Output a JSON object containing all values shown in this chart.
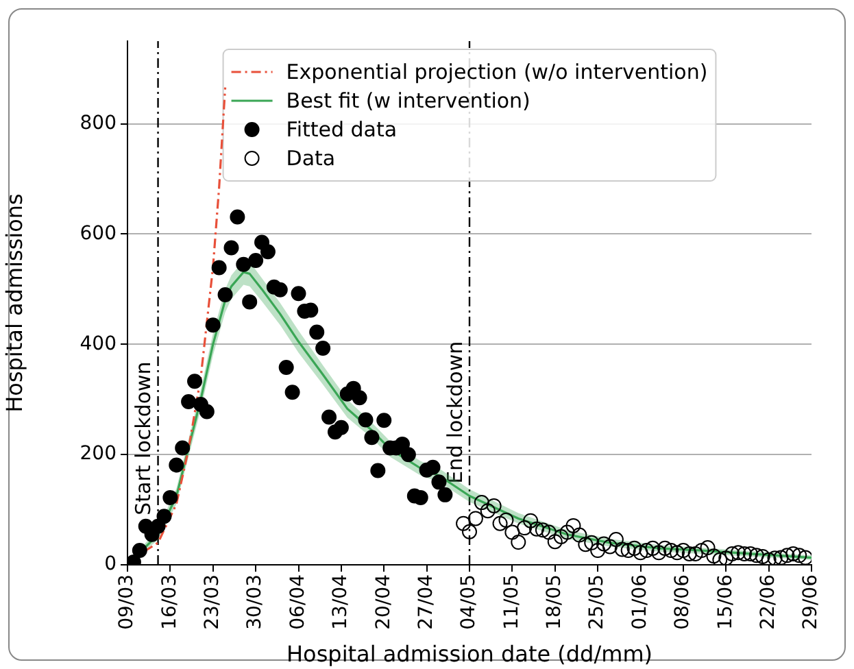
{
  "chart_data": {
    "type": "scatter",
    "xlabel": "Hospital admission date (dd/mm)",
    "ylabel": "Hospital admissions",
    "xlim": [
      "--03-09",
      "--06-29"
    ],
    "xticks": [
      {
        "value": "--03-09",
        "label": "09/03"
      },
      {
        "value": "--03-16",
        "label": "16/03"
      },
      {
        "value": "--03-23",
        "label": "23/03"
      },
      {
        "value": "--03-30",
        "label": "30/03"
      },
      {
        "value": "--04-06",
        "label": "06/04"
      },
      {
        "value": "--04-13",
        "label": "13/04"
      },
      {
        "value": "--04-20",
        "label": "20/04"
      },
      {
        "value": "--04-27",
        "label": "27/04"
      },
      {
        "value": "--05-04",
        "label": "04/05"
      },
      {
        "value": "--05-11",
        "label": "11/05"
      },
      {
        "value": "--05-18",
        "label": "18/05"
      },
      {
        "value": "--05-25",
        "label": "25/05"
      },
      {
        "value": "--06-01",
        "label": "01/06"
      },
      {
        "value": "--06-08",
        "label": "08/06"
      },
      {
        "value": "--06-15",
        "label": "15/06"
      },
      {
        "value": "--06-22",
        "label": "22/06"
      },
      {
        "value": "--06-29",
        "label": "29/06"
      }
    ],
    "ylim": [
      0,
      950
    ],
    "yticks": [
      0,
      200,
      400,
      600,
      800
    ],
    "grid": "y",
    "legend": "top",
    "ref_lines": [
      {
        "axis": "x",
        "value": "--03-14",
        "label": "Start lockdown",
        "color": "#000000",
        "line_style": "dashed"
      },
      {
        "axis": "x",
        "value": "--05-04",
        "label": "End lockdown",
        "color": "#000000",
        "line_style": "dashed"
      }
    ],
    "series": [
      {
        "name": "Exponential projection (w/o intervention)",
        "type": "line",
        "color": "#e8503a",
        "line_style": "dashed",
        "marker": "none",
        "x": [
          "--03-09",
          "--03-14",
          "--03-17",
          "--03-19",
          "--03-21",
          "--03-23",
          "--03-24",
          "--03-25"
        ],
        "values": [
          5,
          40,
          110,
          210,
          340,
          540,
          684,
          866
        ]
      },
      {
        "name": "Best fit (w intervention)",
        "type": "line",
        "color": "#3aa655",
        "line_style": "solid",
        "marker": "none",
        "x": [
          "--03-09",
          "--03-14",
          "--03-17",
          "--03-21",
          "--03-23",
          "--03-25",
          "--03-26",
          "--03-28",
          "--03-29",
          "--03-31",
          "--04-03",
          "--04-06",
          "--04-10",
          "--04-14",
          "--04-18",
          "--04-21",
          "--04-26",
          "--04-29",
          "--05-04",
          "--05-12",
          "--05-20",
          "--05-27",
          "--06-04",
          "--06-11",
          "--06-19",
          "--06-29"
        ],
        "values": [
          0,
          55,
          124,
          300,
          400,
          480,
          505,
          531,
          528,
          500,
          455,
          405,
          345,
          283,
          244,
          210,
          175,
          162,
          125,
          84,
          55,
          40,
          30,
          26,
          20,
          13
        ],
        "lower": [
          0,
          45,
          110,
          282,
          380,
          458,
          482,
          508,
          505,
          478,
          435,
          385,
          327,
          267,
          230,
          196,
          162,
          150,
          114,
          75,
          47,
          33,
          24,
          20,
          15,
          9
        ],
        "upper": [
          3,
          65,
          138,
          318,
          420,
          500,
          525,
          552,
          550,
          520,
          475,
          425,
          362,
          300,
          258,
          224,
          188,
          175,
          137,
          94,
          63,
          47,
          36,
          31,
          25,
          17
        ]
      },
      {
        "name": "Fitted data",
        "color": "#000000",
        "marker": "circle",
        "x": [
          "--03-10",
          "--03-11",
          "--03-12",
          "--03-13",
          "--03-14",
          "--03-15",
          "--03-16",
          "--03-17",
          "--03-18",
          "--03-19",
          "--03-20",
          "--03-21",
          "--03-22",
          "--03-23",
          "--03-24",
          "--03-25",
          "--03-26",
          "--03-27",
          "--03-28",
          "--03-29",
          "--03-30",
          "--03-31",
          "--04-01",
          "--04-02",
          "--04-03",
          "--04-04",
          "--04-05",
          "--04-06",
          "--04-07",
          "--04-08",
          "--04-09",
          "--04-10",
          "--04-11",
          "--04-12",
          "--04-13",
          "--04-14",
          "--04-15",
          "--04-16",
          "--04-17",
          "--04-18",
          "--04-19",
          "--04-20",
          "--04-21",
          "--04-22",
          "--04-23",
          "--04-24",
          "--04-25",
          "--04-26",
          "--04-27",
          "--04-28",
          "--04-29",
          "--04-30"
        ],
        "values": [
          5,
          26,
          70,
          55,
          70,
          88,
          122,
          181,
          212,
          296,
          333,
          291,
          278,
          435,
          539,
          490,
          575,
          631,
          545,
          477,
          552,
          585,
          568,
          504,
          499,
          358,
          313,
          492,
          460,
          462,
          422,
          393,
          268,
          241,
          249,
          310,
          320,
          303,
          263,
          231,
          171,
          262,
          212,
          212,
          219,
          200,
          125,
          122,
          172,
          177,
          150,
          127
        ]
      },
      {
        "name": "Data",
        "color": "#000000",
        "marker": "circle",
        "x": [
          "--05-03",
          "--05-04",
          "--05-05",
          "--05-06",
          "--05-07",
          "--05-08",
          "--05-09",
          "--05-10",
          "--05-11",
          "--05-12",
          "--05-13",
          "--05-14",
          "--05-15",
          "--05-16",
          "--05-17",
          "--05-18",
          "--05-19",
          "--05-20",
          "--05-21",
          "--05-22",
          "--05-23",
          "--05-24",
          "--05-25",
          "--05-26",
          "--05-27",
          "--05-28",
          "--05-29",
          "--05-30",
          "--05-31",
          "--06-01",
          "--06-02",
          "--06-03",
          "--06-04",
          "--06-05",
          "--06-06",
          "--06-07",
          "--06-08",
          "--06-09",
          "--06-10",
          "--06-11",
          "--06-12",
          "--06-13",
          "--06-14",
          "--06-15",
          "--06-16",
          "--06-17",
          "--06-18",
          "--06-19",
          "--06-20",
          "--06-21",
          "--06-22",
          "--06-23",
          "--06-24",
          "--06-25",
          "--06-26",
          "--06-27",
          "--06-28"
        ],
        "values": [
          75,
          60,
          84,
          113,
          98,
          107,
          75,
          81,
          59,
          41,
          67,
          80,
          65,
          63,
          59,
          42,
          51,
          59,
          71,
          54,
          37,
          40,
          26,
          38,
          33,
          46,
          28,
          26,
          30,
          22,
          26,
          30,
          22,
          30,
          26,
          22,
          26,
          20,
          20,
          26,
          31,
          16,
          9,
          12,
          20,
          22,
          20,
          20,
          17,
          15,
          9,
          12,
          13,
          17,
          20,
          17,
          13
        ]
      }
    ]
  }
}
